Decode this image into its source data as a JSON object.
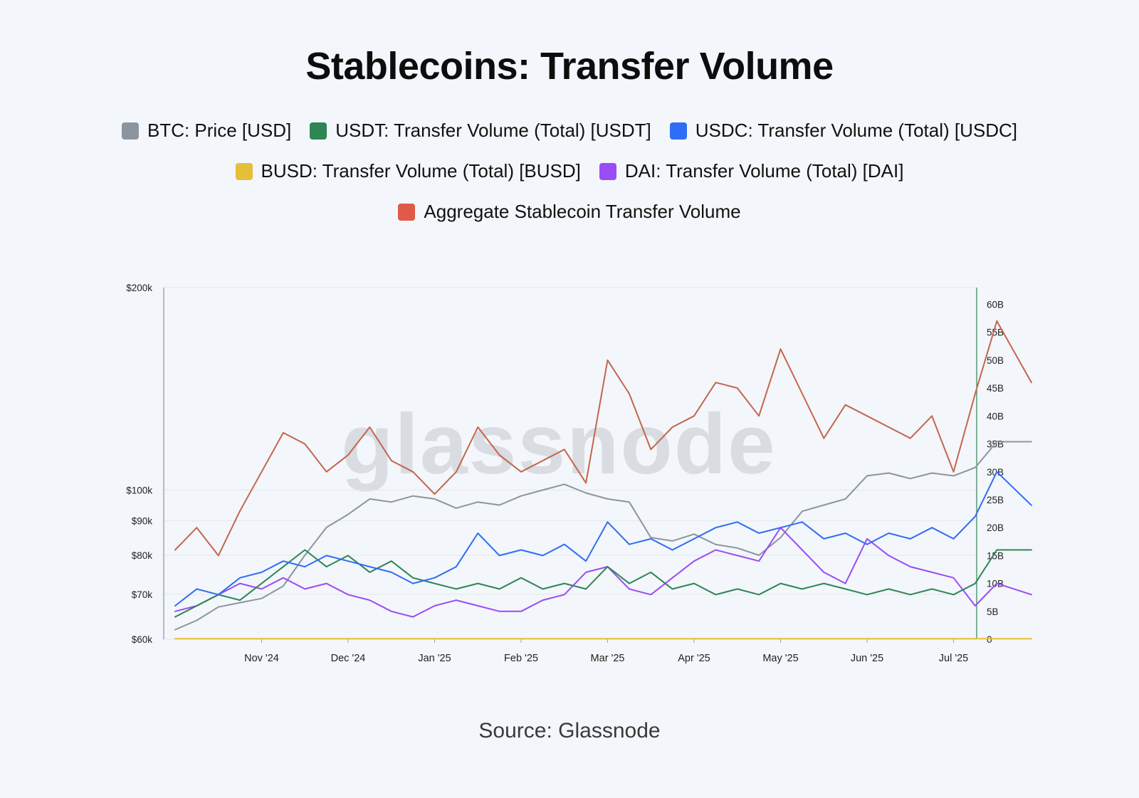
{
  "chart_data": {
    "type": "line",
    "title": "Stablecoins: Transfer Volume",
    "source": "Source: Glassnode",
    "watermark": "glassnode",
    "x_ticks": [
      "Nov '24",
      "Dec '24",
      "Jan '25",
      "Feb '25",
      "Mar '25",
      "Apr '25",
      "May '25",
      "Jun '25",
      "Jul '25"
    ],
    "left_axis": {
      "scale": "log",
      "range": [
        60000,
        200000
      ],
      "ticks": [
        {
          "value": 200000,
          "label": "$200k"
        },
        {
          "value": 100000,
          "label": "$100k"
        },
        {
          "value": 90000,
          "label": "$90k"
        },
        {
          "value": 80000,
          "label": "$80k"
        },
        {
          "value": 70000,
          "label": "$70k"
        },
        {
          "value": 60000,
          "label": "$60k"
        }
      ]
    },
    "right_axis": {
      "scale": "linear",
      "range": [
        0,
        63
      ],
      "unit": "B",
      "ticks": [
        {
          "value": 60,
          "label": "60B"
        },
        {
          "value": 55,
          "label": "55B"
        },
        {
          "value": 50,
          "label": "50B"
        },
        {
          "value": 45,
          "label": "45B"
        },
        {
          "value": 40,
          "label": "40B"
        },
        {
          "value": 35,
          "label": "35B"
        },
        {
          "value": 30,
          "label": "30B"
        },
        {
          "value": 25,
          "label": "25B"
        },
        {
          "value": 20,
          "label": "20B"
        },
        {
          "value": 15,
          "label": "15B"
        },
        {
          "value": 10,
          "label": "10B"
        },
        {
          "value": 5,
          "label": "5B"
        },
        {
          "value": 0,
          "label": "0"
        }
      ]
    },
    "series_note": "values sampled weekly, x expressed in months since Oct 1 2024",
    "series": [
      {
        "key": "btc",
        "name": "BTC: Price [USD]",
        "color": "#8c959f",
        "axis": "left",
        "x": [
          0,
          0.25,
          0.5,
          0.75,
          1.0,
          1.25,
          1.5,
          1.75,
          2.0,
          2.25,
          2.5,
          2.75,
          3.0,
          3.25,
          3.5,
          3.75,
          4.0,
          4.25,
          4.5,
          4.75,
          5.0,
          5.25,
          5.5,
          5.75,
          6.0,
          6.25,
          6.5,
          6.75,
          7.0,
          7.25,
          7.5,
          7.75,
          8.0,
          8.25,
          8.5,
          8.75,
          9.0,
          9.25,
          9.5,
          9.9
        ],
        "values": [
          62000,
          64000,
          67000,
          68000,
          69000,
          72000,
          80000,
          88000,
          92000,
          97000,
          96000,
          98000,
          97000,
          94000,
          96000,
          95000,
          98000,
          100000,
          102000,
          99000,
          97000,
          96000,
          85000,
          84000,
          86000,
          83000,
          82000,
          80000,
          85000,
          93000,
          95000,
          97000,
          105000,
          106000,
          104000,
          106000,
          105000,
          108000,
          118000,
          118000
        ]
      },
      {
        "key": "usdt",
        "name": "USDT: Transfer Volume (Total) [USDT]",
        "color": "#2e8555",
        "axis": "right",
        "x": [
          0,
          0.25,
          0.5,
          0.75,
          1.0,
          1.25,
          1.5,
          1.75,
          2.0,
          2.25,
          2.5,
          2.75,
          3.0,
          3.25,
          3.5,
          3.75,
          4.0,
          4.25,
          4.5,
          4.75,
          5.0,
          5.25,
          5.5,
          5.75,
          6.0,
          6.25,
          6.5,
          6.75,
          7.0,
          7.25,
          7.5,
          7.75,
          8.0,
          8.25,
          8.5,
          8.75,
          9.0,
          9.25,
          9.5,
          9.9
        ],
        "values": [
          4,
          6,
          8,
          7,
          10,
          13,
          16,
          13,
          15,
          12,
          14,
          11,
          10,
          9,
          10,
          9,
          11,
          9,
          10,
          9,
          13,
          10,
          12,
          9,
          10,
          8,
          9,
          8,
          10,
          9,
          10,
          9,
          8,
          9,
          8,
          9,
          8,
          10,
          16,
          16
        ]
      },
      {
        "key": "usdc",
        "name": "USDC: Transfer Volume (Total) [USDC]",
        "color": "#2f6df6",
        "axis": "right",
        "x": [
          0,
          0.25,
          0.5,
          0.75,
          1.0,
          1.25,
          1.5,
          1.75,
          2.0,
          2.25,
          2.5,
          2.75,
          3.0,
          3.25,
          3.5,
          3.75,
          4.0,
          4.25,
          4.5,
          4.75,
          5.0,
          5.25,
          5.5,
          5.75,
          6.0,
          6.25,
          6.5,
          6.75,
          7.0,
          7.25,
          7.5,
          7.75,
          8.0,
          8.25,
          8.5,
          8.75,
          9.0,
          9.25,
          9.5,
          9.9
        ],
        "values": [
          6,
          9,
          8,
          11,
          12,
          14,
          13,
          15,
          14,
          13,
          12,
          10,
          11,
          13,
          19,
          15,
          16,
          15,
          17,
          14,
          21,
          17,
          18,
          16,
          18,
          20,
          21,
          19,
          20,
          21,
          18,
          19,
          17,
          19,
          18,
          20,
          18,
          22,
          30,
          24
        ]
      },
      {
        "key": "busd",
        "name": "BUSD: Transfer Volume (Total) [BUSD]",
        "color": "#e4bf3a",
        "axis": "right",
        "x": [
          0,
          9.9
        ],
        "values": [
          0.1,
          0.1
        ]
      },
      {
        "key": "dai",
        "name": "DAI: Transfer Volume (Total) [DAI]",
        "color": "#9b4cf6",
        "axis": "right",
        "x": [
          0,
          0.25,
          0.5,
          0.75,
          1.0,
          1.25,
          1.5,
          1.75,
          2.0,
          2.25,
          2.5,
          2.75,
          3.0,
          3.25,
          3.5,
          3.75,
          4.0,
          4.25,
          4.5,
          4.75,
          5.0,
          5.25,
          5.5,
          5.75,
          6.0,
          6.25,
          6.5,
          6.75,
          7.0,
          7.25,
          7.5,
          7.75,
          8.0,
          8.25,
          8.5,
          8.75,
          9.0,
          9.25,
          9.5,
          9.9
        ],
        "values": [
          5,
          6,
          8,
          10,
          9,
          11,
          9,
          10,
          8,
          7,
          5,
          4,
          6,
          7,
          6,
          5,
          5,
          7,
          8,
          12,
          13,
          9,
          8,
          11,
          14,
          16,
          15,
          14,
          20,
          16,
          12,
          10,
          18,
          15,
          13,
          12,
          11,
          6,
          10,
          8
        ]
      },
      {
        "key": "agg",
        "name": "Aggregate Stablecoin Transfer Volume",
        "color": "#c2674c",
        "axis": "right",
        "x": [
          0,
          0.25,
          0.5,
          0.75,
          1.0,
          1.25,
          1.5,
          1.75,
          2.0,
          2.25,
          2.5,
          2.75,
          3.0,
          3.25,
          3.5,
          3.75,
          4.0,
          4.25,
          4.5,
          4.75,
          5.0,
          5.25,
          5.5,
          5.75,
          6.0,
          6.25,
          6.5,
          6.75,
          7.0,
          7.25,
          7.5,
          7.75,
          8.0,
          8.25,
          8.5,
          8.75,
          9.0,
          9.25,
          9.5,
          9.9
        ],
        "values": [
          16,
          20,
          15,
          23,
          30,
          37,
          35,
          30,
          33,
          38,
          32,
          30,
          26,
          30,
          38,
          33,
          30,
          32,
          34,
          28,
          50,
          44,
          34,
          38,
          40,
          46,
          45,
          40,
          52,
          44,
          36,
          42,
          40,
          38,
          36,
          40,
          30,
          44,
          57,
          46
        ]
      }
    ]
  }
}
